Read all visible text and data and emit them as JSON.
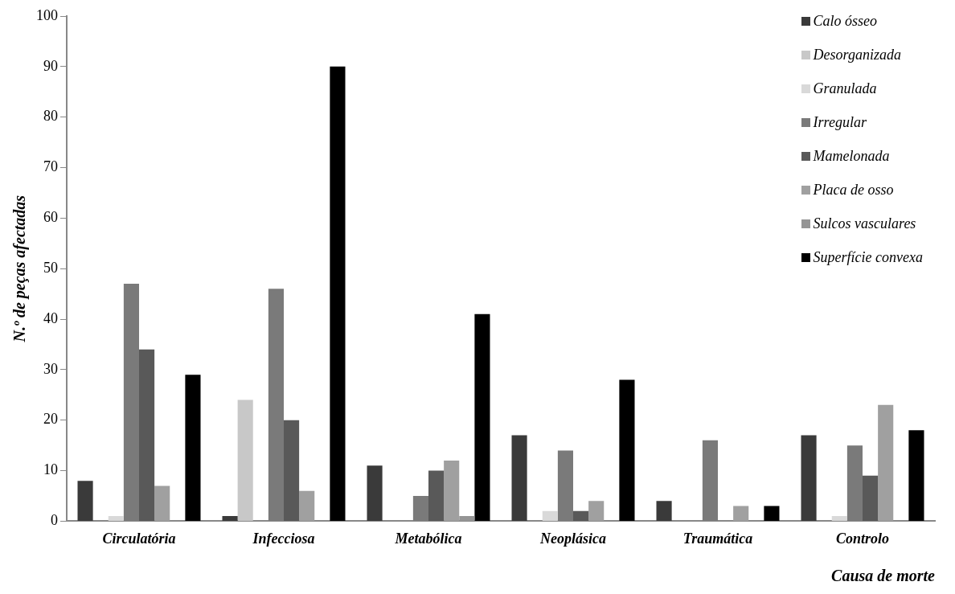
{
  "chart_data": {
    "type": "bar",
    "xlabel": "Causa de morte",
    "ylabel": "N.º de peças afectadas",
    "categories": [
      "Circulatória",
      "Infecciosa",
      "Metabólica",
      "Neoplásica",
      "Traumática",
      "Controlo"
    ],
    "series": [
      {
        "name": "Calo ósseo",
        "color": "#3a3a3a",
        "values": [
          8,
          1,
          11,
          17,
          4,
          17
        ]
      },
      {
        "name": "Desorganizada",
        "color": "#c8c8c8",
        "values": [
          0,
          24,
          0,
          0,
          0,
          0
        ]
      },
      {
        "name": "Granulada",
        "color": "#d9d9d9",
        "values": [
          1,
          0,
          0,
          2,
          0,
          1
        ]
      },
      {
        "name": "Irregular",
        "color": "#7a7a7a",
        "values": [
          47,
          46,
          5,
          14,
          16,
          15
        ]
      },
      {
        "name": "Mamelonada",
        "color": "#595959",
        "values": [
          34,
          20,
          10,
          2,
          0,
          9
        ]
      },
      {
        "name": "Placa de osso",
        "color": "#a0a0a0",
        "values": [
          7,
          6,
          12,
          4,
          3,
          23
        ]
      },
      {
        "name": "Sulcos vasculares",
        "color": "#959595",
        "values": [
          0,
          0,
          1,
          0,
          0,
          0
        ]
      },
      {
        "name": "Superfície convexa",
        "color": "#000000",
        "values": [
          29,
          90,
          41,
          28,
          3,
          18
        ]
      }
    ],
    "ylim": [
      0,
      100
    ],
    "yticks": [
      0,
      10,
      20,
      30,
      40,
      50,
      60,
      70,
      80,
      90,
      100
    ],
    "grid": false,
    "legend": "top right"
  }
}
